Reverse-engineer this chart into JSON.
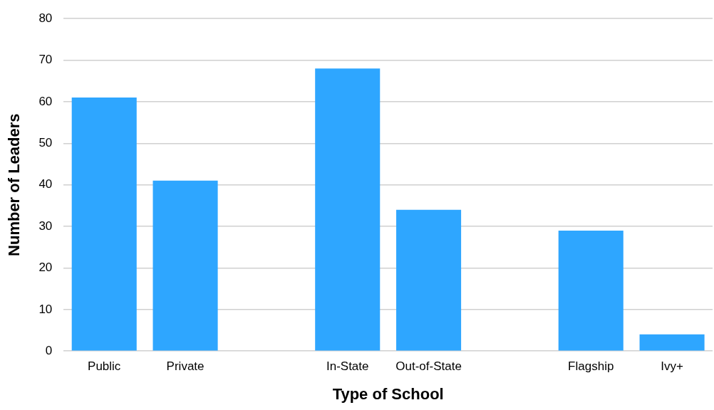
{
  "chart_data": {
    "type": "bar",
    "xlabel": "Type of School",
    "ylabel": "Number of Leaders",
    "categories": [
      "Public",
      "Private",
      null,
      "In-State",
      "Out-of-State",
      null,
      "Flagship",
      "Ivy+"
    ],
    "values": [
      61,
      41,
      null,
      68,
      34,
      null,
      29,
      4
    ],
    "color": "#2ea6ff",
    "ylim": [
      0,
      80
    ],
    "yticks": [
      0,
      10,
      20,
      30,
      40,
      50,
      60,
      70,
      80
    ],
    "grid": "y",
    "legend": false
  }
}
